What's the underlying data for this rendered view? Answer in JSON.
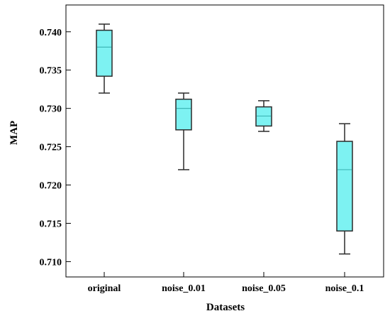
{
  "chart_data": {
    "type": "boxplot",
    "title": "",
    "xlabel": "Datasets",
    "ylabel": "MAP",
    "ylim": [
      0.708,
      0.7435
    ],
    "yticks": [
      "0.710",
      "0.715",
      "0.720",
      "0.725",
      "0.730",
      "0.735",
      "0.740"
    ],
    "categories": [
      "original",
      "noise_0.01",
      "noise_0.05",
      "noise_0.1"
    ],
    "boxes": [
      {
        "category": "original",
        "min": 0.732,
        "q1": 0.7342,
        "median": 0.738,
        "q3": 0.7402,
        "max": 0.741
      },
      {
        "category": "noise_0.01",
        "min": 0.722,
        "q1": 0.7272,
        "median": 0.73,
        "q3": 0.7312,
        "max": 0.732
      },
      {
        "category": "noise_0.05",
        "min": 0.727,
        "q1": 0.7277,
        "median": 0.729,
        "q3": 0.7302,
        "max": 0.731
      },
      {
        "category": "noise_0.1",
        "min": 0.711,
        "q1": 0.714,
        "median": 0.722,
        "q3": 0.7257,
        "max": 0.728
      }
    ],
    "grid": false,
    "legend": "none",
    "box_fill": "#7df2f2",
    "box_stroke": "#2b2b2b",
    "median_color": "#3fb8b8"
  }
}
